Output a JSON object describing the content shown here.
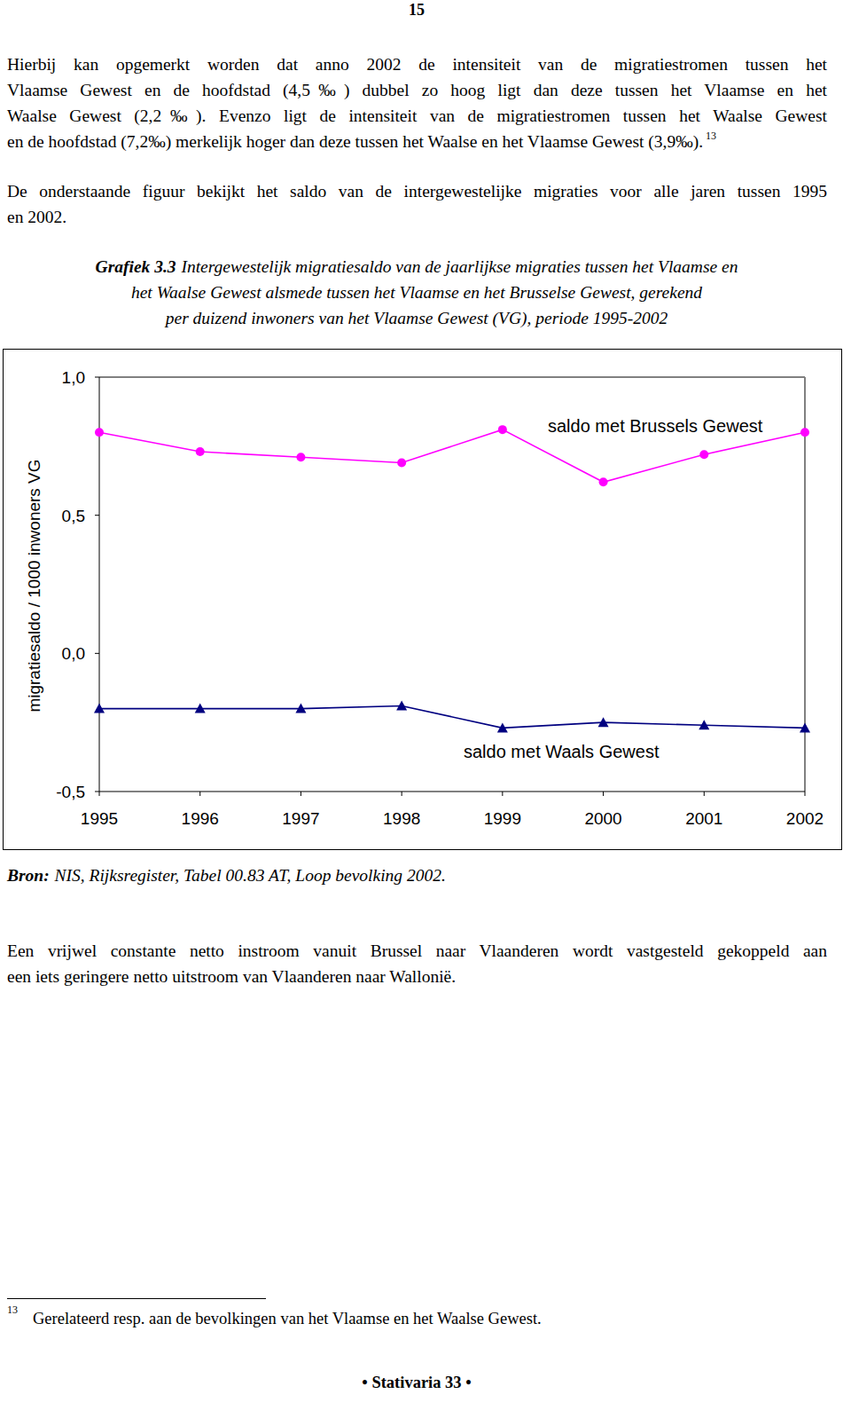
{
  "page_number": "15",
  "paragraphs": [
    {
      "lines": [
        "Hierbij kan opgemerkt worden dat anno 2002 de intensiteit van de migratiestromen tussen het",
        "Vlaamse Gewest en de hoofdstad (4,5‰) dubbel zo hoog ligt dan deze tussen het Vlaamse en het",
        "Waalse Gewest (2,2‰). Evenzo ligt de intensiteit van de migratiestromen tussen het Waalse Gewest",
        "en de hoofdstad (7,2‰) merkelijk hoger dan deze tussen het Waalse en het Vlaamse Gewest (3,9‰)."
      ],
      "footnote_ref": "13"
    },
    {
      "lines": [
        "De onderstaande figuur bekijkt het saldo van de intergewestelijke migraties voor alle jaren tussen 1995",
        "en 2002."
      ]
    }
  ],
  "figure": {
    "label": "Grafiek 3.3",
    "caption_lines": [
      "Intergewestelijk migratiesaldo van de jaarlijkse migraties tussen het Vlaamse en",
      "het Waalse Gewest alsmede tussen het Vlaamse en het Brusselse Gewest, gerekend",
      "per duizend inwoners van het Vlaamse Gewest (VG), periode 1995-2002"
    ]
  },
  "chart_data": {
    "type": "line",
    "y_label": "migratiesaldo / 1000 inwoners VG",
    "x": [
      1995,
      1996,
      1997,
      1998,
      1999,
      2000,
      2001,
      2002
    ],
    "xlim": [
      1995,
      2002
    ],
    "xticks": [
      1995,
      1996,
      1997,
      1998,
      1999,
      2000,
      2001,
      2002
    ],
    "ylim": [
      -0.5,
      1
    ],
    "yticks": [
      {
        "value": -0.5,
        "label": "-0,5"
      },
      {
        "value": 0,
        "label": "0,0"
      },
      {
        "value": 0.5,
        "label": "0,5"
      },
      {
        "value": 1,
        "label": "1,0"
      }
    ],
    "grid": false,
    "series": [
      {
        "name": "saldo met Brussels Gewest",
        "color": "#ff00ff",
        "marker": "circle",
        "line_style": "solid",
        "values": [
          0.8,
          0.73,
          0.71,
          0.69,
          0.81,
          0.62,
          0.72,
          0.8
        ]
      },
      {
        "name": "saldo met Waals Gewest",
        "color": "#000080",
        "marker": "triangle",
        "line_style": "solid",
        "values": [
          -0.2,
          -0.2,
          -0.2,
          -0.19,
          -0.27,
          -0.25,
          -0.26,
          -0.27
        ]
      }
    ]
  },
  "source": {
    "label": "Bron:",
    "text": "NIS, Rijksregister, Tabel 00.83 AT, Loop bevolking 2002."
  },
  "conclusion": {
    "lines": [
      "Een vrijwel constante netto instroom vanuit Brussel naar Vlaanderen wordt vastgesteld gekoppeld aan",
      "een iets geringere netto uitstroom van Vlaanderen naar Wallonië."
    ]
  },
  "footnote": {
    "number": "13",
    "text": "Gerelateerd resp. aan de bevolkingen van het Vlaamse en het Waalse Gewest."
  },
  "footer": "• Stativaria 33 •"
}
